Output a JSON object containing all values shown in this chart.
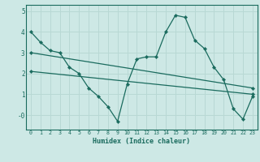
{
  "title": "",
  "xlabel": "Humidex (Indice chaleur)",
  "ylabel": "",
  "background_color": "#cde8e5",
  "line_color": "#1a6b5e",
  "grid_color": "#b8d8d4",
  "xlim": [
    -0.5,
    23.5
  ],
  "ylim": [
    -0.7,
    5.3
  ],
  "yticks": [
    0,
    1,
    2,
    3,
    4,
    5
  ],
  "ytick_labels": [
    "-0",
    "1",
    "2",
    "3",
    "4",
    "5"
  ],
  "xticks": [
    0,
    1,
    2,
    3,
    4,
    5,
    6,
    7,
    8,
    9,
    10,
    11,
    12,
    13,
    14,
    15,
    16,
    17,
    18,
    19,
    20,
    21,
    22,
    23
  ],
  "series": [
    {
      "x": [
        0,
        1,
        2,
        3,
        4,
        5,
        6,
        7,
        8,
        9,
        10,
        11,
        12,
        13,
        14,
        15,
        16,
        17,
        18,
        19,
        20,
        21,
        22,
        23
      ],
      "y": [
        4.0,
        3.5,
        3.1,
        3.0,
        2.3,
        2.0,
        1.3,
        0.9,
        0.4,
        -0.3,
        1.5,
        2.7,
        2.8,
        2.8,
        4.0,
        4.8,
        4.7,
        3.6,
        3.2,
        2.3,
        1.7,
        0.3,
        -0.2,
        0.9
      ]
    },
    {
      "x": [
        0,
        23
      ],
      "y": [
        3.0,
        1.3
      ]
    },
    {
      "x": [
        0,
        23
      ],
      "y": [
        2.1,
        1.0
      ]
    }
  ]
}
